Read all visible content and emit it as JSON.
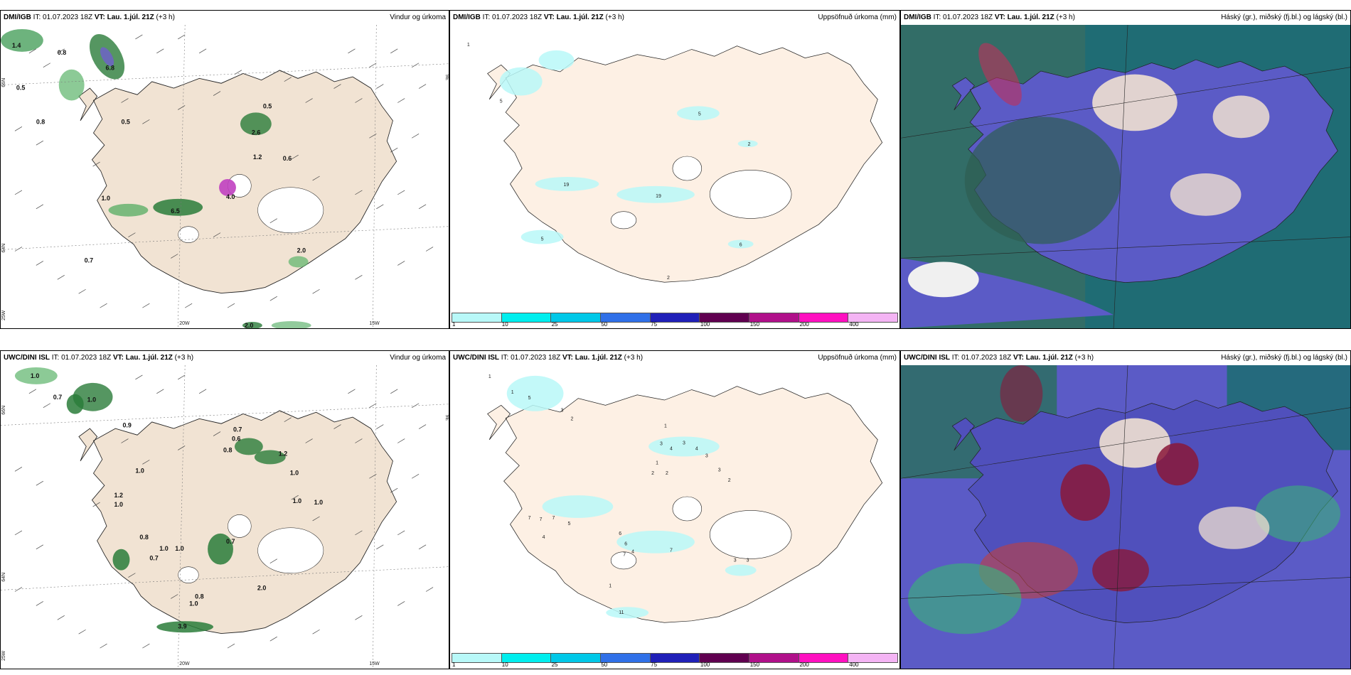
{
  "panels": [
    {
      "model": "DMI/IGB",
      "it_label": "IT:",
      "it_value": "01.07.2023 18Z",
      "vt_label": "VT: Lau. 1.júl. 21Z",
      "lead": "(+3 h)",
      "title_right": "Vindur og úrkoma"
    },
    {
      "model": "DMI/IGB",
      "it_label": "IT:",
      "it_value": "01.07.2023 18Z",
      "vt_label": "VT: Lau. 1.júl. 21Z",
      "lead": "(+3 h)",
      "title_right": "Uppsöfnuð úrkoma (mm)"
    },
    {
      "model": "DMI/IGB",
      "it_label": "IT:",
      "it_value": "01.07.2023 18Z",
      "vt_label": "VT: Lau. 1.júl. 21Z",
      "lead": "(+3 h)",
      "title_right": "Háský (gr.), miðský (fj.bl.) og lágský (bl.)"
    },
    {
      "model": "UWC/DINI ISL",
      "it_label": "IT:",
      "it_value": "01.07.2023 18Z",
      "vt_label": "VT: Lau. 1.júl. 21Z",
      "lead": "(+3 h)",
      "title_right": "Vindur og úrkoma"
    },
    {
      "model": "UWC/DINI ISL",
      "it_label": "IT:",
      "it_value": "01.07.2023 18Z",
      "vt_label": "VT: Lau. 1.júl. 21Z",
      "lead": "(+3 h)",
      "title_right": "Uppsöfnuð úrkoma (mm)"
    },
    {
      "model": "UWC/DINI ISL",
      "it_label": "IT:",
      "it_value": "01.07.2023 18Z",
      "vt_label": "VT: Lau. 1.júl. 21Z",
      "lead": "(+3 h)",
      "title_right": "Háský (gr.), miðský (fj.bl.) og lágský (bl.)"
    }
  ],
  "grid_labels": {
    "lat66": "66N",
    "lat64": "64N",
    "lon25": "25W",
    "lon20": "20W",
    "lon15": "15W",
    "lon9": "9E"
  },
  "precip_labels_top": [
    "1.4",
    "0.8",
    "0.5",
    "0.8",
    "6.8",
    "0.5",
    "2.6",
    "0.5",
    "1.2",
    "0.6",
    "1.0",
    "6.5",
    "4.0",
    "0.7",
    "2.0",
    "2.0"
  ],
  "precip_labels_bottom": [
    "1.0",
    "0.7",
    "0.9",
    "1.0",
    "1.0",
    "0.8",
    "1.2",
    "1.0",
    "0.7",
    "0.6",
    "0.8",
    "1.2",
    "1.0",
    "1.0",
    "1.0",
    "1.0",
    "0.7",
    "1.0",
    "0.7",
    "2.0",
    "1.0",
    "0.8",
    "3.9"
  ],
  "accum_labels_top": [
    "1",
    "5",
    "5",
    "19",
    "19",
    "2",
    "5",
    "2",
    "6"
  ],
  "accum_labels_bottom": [
    "1",
    "1",
    "5",
    "3",
    "2",
    "1",
    "3",
    "4",
    "3",
    "4",
    "3",
    "2",
    "2",
    "1",
    "3",
    "2",
    "7",
    "7",
    "7",
    "5",
    "6",
    "6",
    "4",
    "7",
    "7",
    "4",
    "1",
    "11",
    "3",
    "3"
  ],
  "colorbar": {
    "ticks": [
      "1",
      "10",
      "25",
      "50",
      "75",
      "100",
      "150",
      "200",
      "400"
    ],
    "colors": [
      "#b8f8f8",
      "#00eeee",
      "#00c8e8",
      "#3070e8",
      "#2020b8",
      "#600050",
      "#b0108a",
      "#ff10c0",
      "#f4b4f4"
    ]
  },
  "colors": {
    "land": "#f1e3d3",
    "water": "#ffffff",
    "ice": "#ffffff",
    "green_dark": "#1f6b2a",
    "green_light": "#a8e0b0",
    "cloud_blue": "#5a5ac8",
    "cloud_teal": "#1a6e76",
    "cloud_red": "#a01830"
  }
}
